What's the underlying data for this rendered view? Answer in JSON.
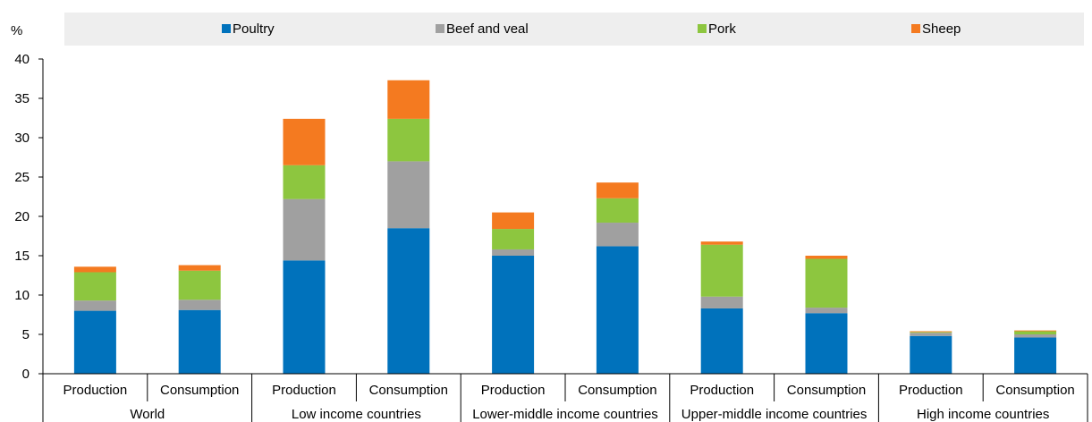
{
  "chart_data": {
    "type": "bar",
    "stacked": true,
    "unit_label": "%",
    "ylim": [
      0,
      40
    ],
    "yticks": [
      0,
      5,
      10,
      15,
      20,
      25,
      30,
      35,
      40
    ],
    "grid": false,
    "legend_position": "top",
    "groups": [
      "World",
      "Low income countries",
      "Lower-middle income countries",
      "Upper-middle income countries",
      "High income countries"
    ],
    "categories": [
      "Production",
      "Consumption",
      "Production",
      "Consumption",
      "Production",
      "Consumption",
      "Production",
      "Consumption",
      "Production",
      "Consumption"
    ],
    "series": [
      {
        "name": "Poultry",
        "color": "#0072bc",
        "values": [
          8.0,
          8.1,
          14.4,
          18.5,
          15.0,
          16.2,
          8.3,
          7.7,
          4.8,
          4.6
        ]
      },
      {
        "name": "Beef and veal",
        "color": "#a0a0a0",
        "values": [
          1.3,
          1.3,
          7.8,
          8.5,
          0.8,
          3.0,
          1.5,
          0.7,
          0.4,
          0.4
        ]
      },
      {
        "name": "Pork",
        "color": "#8dc63f",
        "values": [
          3.6,
          3.7,
          4.3,
          5.4,
          2.6,
          3.1,
          6.6,
          6.2,
          0.1,
          0.4
        ]
      },
      {
        "name": "Sheep",
        "color": "#f47a20",
        "values": [
          0.7,
          0.7,
          5.9,
          4.9,
          2.1,
          2.0,
          0.4,
          0.4,
          0.1,
          0.1
        ]
      }
    ]
  }
}
